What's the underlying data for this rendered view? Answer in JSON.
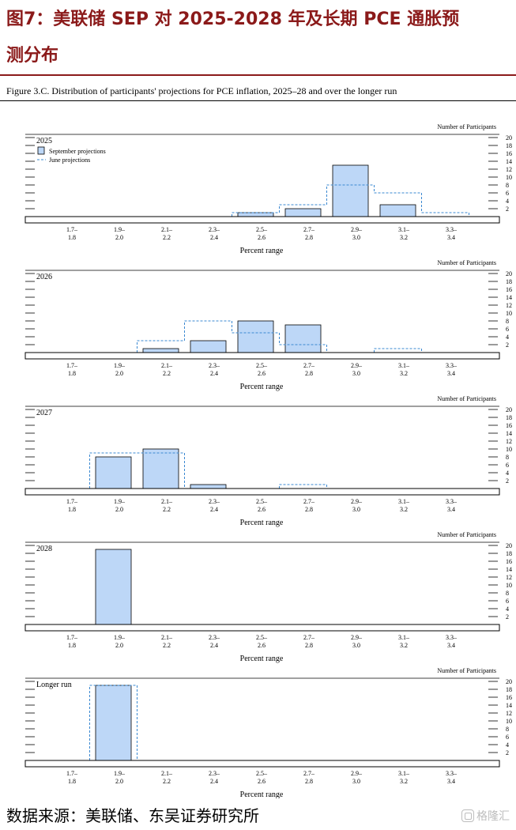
{
  "header": {
    "title_line1": "图7：美联储 SEP 对 2025-2028 年及长期 PCE 通胀预",
    "title_line2": "测分布"
  },
  "figure_caption": "Figure 3.C. Distribution of participants' projections for PCE inflation, 2025–28 and over the longer run",
  "footer": {
    "source": "数据来源：美联储、东吴证券研究所",
    "watermark": "格隆汇"
  },
  "colors": {
    "bar_fill": "#bdd7f7",
    "bar_stroke": "#000000",
    "june_line": "#3a88d1",
    "header_accent": "#8b1a1a"
  },
  "chart_data": [
    {
      "type": "bar",
      "title": "2025",
      "categories": [
        "1.7–1.8",
        "1.9–2.0",
        "2.1–2.2",
        "2.3–2.4",
        "2.5–2.6",
        "2.7–2.8",
        "2.9–3.0",
        "3.1–3.2",
        "3.3–3.4"
      ],
      "category_labels_top": [
        "1.7–",
        "1.9–",
        "2.1–",
        "2.3–",
        "2.5–",
        "2.7–",
        "2.9–",
        "3.1–",
        "3.3–"
      ],
      "category_labels_bottom": [
        "1.8",
        "2.0",
        "2.2",
        "2.4",
        "2.6",
        "2.8",
        "3.0",
        "3.2",
        "3.4"
      ],
      "series": [
        {
          "name": "September projections",
          "style": "bar",
          "values": [
            0,
            0,
            0,
            0,
            1,
            2,
            13,
            3,
            0
          ]
        },
        {
          "name": "June projections",
          "style": "dashed-step",
          "values": [
            0,
            0,
            0,
            0,
            1,
            3,
            8,
            6,
            1
          ]
        }
      ],
      "xlabel": "Percent range",
      "ylabel": "Number of Participants",
      "ylim": [
        0,
        20
      ],
      "yticks": [
        2,
        4,
        6,
        8,
        10,
        12,
        14,
        16,
        18,
        20
      ],
      "legend": "top-left"
    },
    {
      "type": "bar",
      "title": "2026",
      "categories": [
        "1.7–1.8",
        "1.9–2.0",
        "2.1–2.2",
        "2.3–2.4",
        "2.5–2.6",
        "2.7–2.8",
        "2.9–3.0",
        "3.1–3.2",
        "3.3–3.4"
      ],
      "category_labels_top": [
        "1.7–",
        "1.9–",
        "2.1–",
        "2.3–",
        "2.5–",
        "2.7–",
        "2.9–",
        "3.1–",
        "3.3–"
      ],
      "category_labels_bottom": [
        "1.8",
        "2.0",
        "2.2",
        "2.4",
        "2.6",
        "2.8",
        "3.0",
        "3.2",
        "3.4"
      ],
      "series": [
        {
          "name": "September projections",
          "style": "bar",
          "values": [
            0,
            0,
            1,
            3,
            8,
            7,
            0,
            0,
            0
          ]
        },
        {
          "name": "June projections",
          "style": "dashed-step",
          "values": [
            0,
            0,
            3,
            8,
            5,
            2,
            0,
            1,
            0
          ]
        }
      ],
      "xlabel": "Percent range",
      "ylabel": "Number of Participants",
      "ylim": [
        0,
        20
      ],
      "yticks": [
        2,
        4,
        6,
        8,
        10,
        12,
        14,
        16,
        18,
        20
      ]
    },
    {
      "type": "bar",
      "title": "2027",
      "categories": [
        "1.7–1.8",
        "1.9–2.0",
        "2.1–2.2",
        "2.3–2.4",
        "2.5–2.6",
        "2.7–2.8",
        "2.9–3.0",
        "3.1–3.2",
        "3.3–3.4"
      ],
      "category_labels_top": [
        "1.7–",
        "1.9–",
        "2.1–",
        "2.3–",
        "2.5–",
        "2.7–",
        "2.9–",
        "3.1–",
        "3.3–"
      ],
      "category_labels_bottom": [
        "1.8",
        "2.0",
        "2.2",
        "2.4",
        "2.6",
        "2.8",
        "3.0",
        "3.2",
        "3.4"
      ],
      "series": [
        {
          "name": "September projections",
          "style": "bar",
          "values": [
            0,
            8,
            10,
            1,
            0,
            0,
            0,
            0,
            0
          ]
        },
        {
          "name": "June projections",
          "style": "dashed-step",
          "values": [
            0,
            9,
            9,
            0,
            0,
            1,
            0,
            0,
            0
          ]
        }
      ],
      "xlabel": "Percent range",
      "ylabel": "Number of Participants",
      "ylim": [
        0,
        20
      ],
      "yticks": [
        2,
        4,
        6,
        8,
        10,
        12,
        14,
        16,
        18,
        20
      ]
    },
    {
      "type": "bar",
      "title": "2028",
      "categories": [
        "1.7–1.8",
        "1.9–2.0",
        "2.1–2.2",
        "2.3–2.4",
        "2.5–2.6",
        "2.7–2.8",
        "2.9–3.0",
        "3.1–3.2",
        "3.3–3.4"
      ],
      "category_labels_top": [
        "1.7–",
        "1.9–",
        "2.1–",
        "2.3–",
        "2.5–",
        "2.7–",
        "2.9–",
        "3.1–",
        "3.3–"
      ],
      "category_labels_bottom": [
        "1.8",
        "2.0",
        "2.2",
        "2.4",
        "2.6",
        "2.8",
        "3.0",
        "3.2",
        "3.4"
      ],
      "series": [
        {
          "name": "September projections",
          "style": "bar",
          "values": [
            0,
            19,
            0,
            0,
            0,
            0,
            0,
            0,
            0
          ]
        }
      ],
      "xlabel": "Percent range",
      "ylabel": "Number of Participants",
      "ylim": [
        0,
        20
      ],
      "yticks": [
        2,
        4,
        6,
        8,
        10,
        12,
        14,
        16,
        18,
        20
      ]
    },
    {
      "type": "bar",
      "title": "Longer run",
      "categories": [
        "1.7–1.8",
        "1.9–2.0",
        "2.1–2.2",
        "2.3–2.4",
        "2.5–2.6",
        "2.7–2.8",
        "2.9–3.0",
        "3.1–3.2",
        "3.3–3.4"
      ],
      "category_labels_top": [
        "1.7–",
        "1.9–",
        "2.1–",
        "2.3–",
        "2.5–",
        "2.7–",
        "2.9–",
        "3.1–",
        "3.3–"
      ],
      "category_labels_bottom": [
        "1.8",
        "2.0",
        "2.2",
        "2.4",
        "2.6",
        "2.8",
        "3.0",
        "3.2",
        "3.4"
      ],
      "series": [
        {
          "name": "September projections",
          "style": "bar",
          "values": [
            0,
            19,
            0,
            0,
            0,
            0,
            0,
            0,
            0
          ]
        },
        {
          "name": "June projections",
          "style": "dashed-step",
          "values": [
            0,
            19,
            0,
            0,
            0,
            0,
            0,
            0,
            0
          ]
        }
      ],
      "xlabel": "Percent range",
      "ylabel": "Number of Participants",
      "ylim": [
        0,
        20
      ],
      "yticks": [
        2,
        4,
        6,
        8,
        10,
        12,
        14,
        16,
        18,
        20
      ]
    }
  ]
}
